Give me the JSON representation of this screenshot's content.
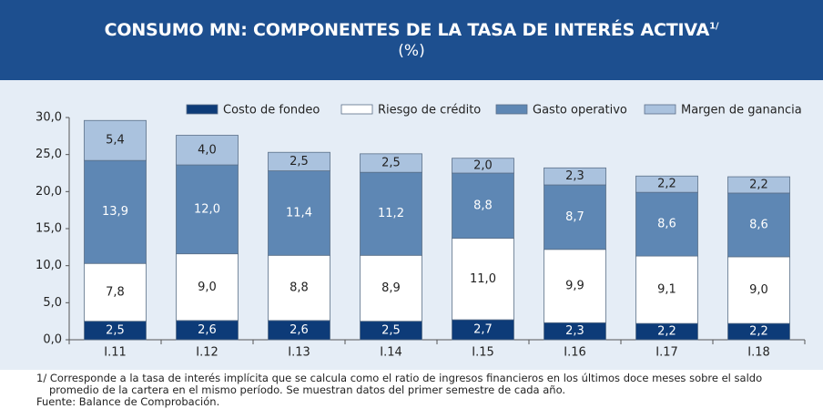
{
  "chart_data": {
    "type": "stacked_bar",
    "title": "CONSUMO MN: COMPONENTES DE LA TASA DE INTERÉS ACTIVA",
    "title_note": "1/",
    "subtitle": "(%)",
    "categories": [
      "I.11",
      "I.12",
      "I.13",
      "I.14",
      "I.15",
      "I.16",
      "I.17",
      "I.18"
    ],
    "series": [
      {
        "name": "Costo de fondeo",
        "color": "#0d3b78",
        "label_color": "#ffffff",
        "values": [
          2.5,
          2.6,
          2.6,
          2.5,
          2.7,
          2.3,
          2.2,
          2.2
        ],
        "value_labels": [
          "2,5",
          "2,6",
          "2,6",
          "2,5",
          "2,7",
          "2,3",
          "2,2",
          "2,2"
        ]
      },
      {
        "name": "Riesgo de crédito",
        "color": "#ffffff",
        "label_color": "#222222",
        "values": [
          7.8,
          9.0,
          8.8,
          8.9,
          11.0,
          9.9,
          9.1,
          9.0
        ],
        "value_labels": [
          "7,8",
          "9,0",
          "8,8",
          "8,9",
          "11,0",
          "9,9",
          "9,1",
          "9,0"
        ]
      },
      {
        "name": "Gasto operativo",
        "color": "#5e87b4",
        "label_color": "#ffffff",
        "values": [
          13.9,
          12.0,
          11.4,
          11.2,
          8.8,
          8.7,
          8.6,
          8.6
        ],
        "value_labels": [
          "13,9",
          "12,0",
          "11,4",
          "11,2",
          "8,8",
          "8,7",
          "8,6",
          "8,6"
        ]
      },
      {
        "name": "Margen de ganancia",
        "color": "#aac2de",
        "label_color": "#222222",
        "values": [
          5.4,
          4.0,
          2.5,
          2.5,
          2.0,
          2.3,
          2.2,
          2.2
        ],
        "value_labels": [
          "5,4",
          "4,0",
          "2,5",
          "2,5",
          "2,0",
          "2,3",
          "2,2",
          "2,2"
        ]
      }
    ],
    "ylim": [
      0,
      30
    ],
    "yticks": [
      {
        "value": 0,
        "label": "0,0"
      },
      {
        "value": 5,
        "label": "5,0"
      },
      {
        "value": 10,
        "label": "10,0"
      },
      {
        "value": 15,
        "label": "15,0"
      },
      {
        "value": 20,
        "label": "20,0"
      },
      {
        "value": 25,
        "label": "25,0"
      },
      {
        "value": 30,
        "label": "30,0"
      }
    ],
    "grid": false,
    "legend": "top",
    "footnote": "1/ Corresponde a la tasa de interés implícita que se calcula como el ratio de ingresos financieros en los últimos doce meses sobre el saldo promedio de la cartera en el mismo período. Se muestran datos del primer semestre de cada año.",
    "source": "Fuente: Balance de Comprobación."
  }
}
